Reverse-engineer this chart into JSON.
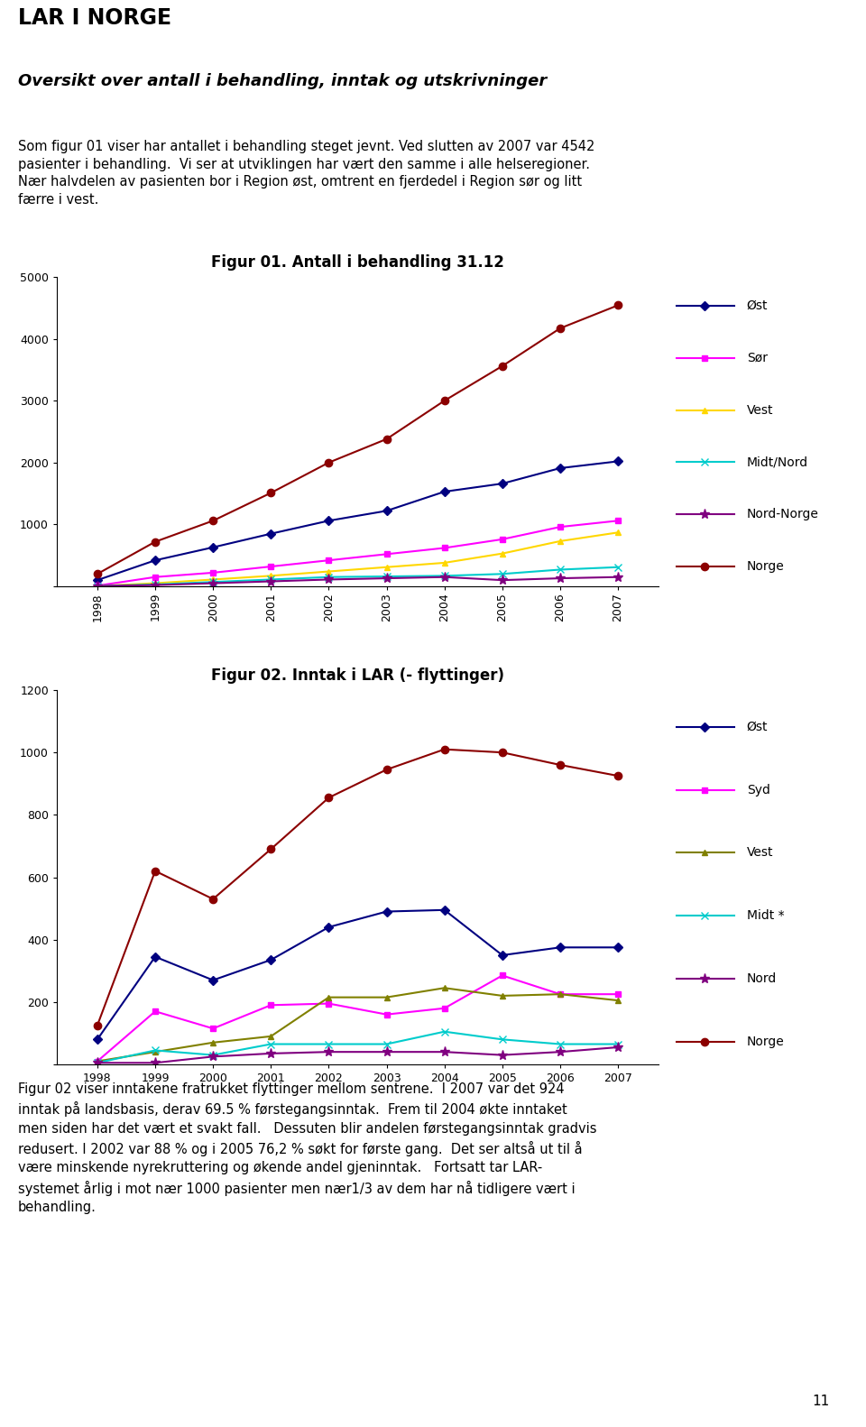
{
  "page_title": "LAR I NORGE",
  "subtitle": "Oversikt over antall i behandling, inntak og utskrivninger",
  "fig1_title": "Figur 01. Antall i behandling 31.12",
  "fig1_years": [
    1998,
    1999,
    2000,
    2001,
    2002,
    2003,
    2004,
    2005,
    2006,
    2007
  ],
  "fig1_ost": [
    100,
    420,
    630,
    850,
    1060,
    1220,
    1530,
    1660,
    1910,
    2020
  ],
  "fig1_sor": [
    10,
    150,
    220,
    320,
    420,
    520,
    620,
    760,
    960,
    1060
  ],
  "fig1_vest": [
    5,
    50,
    110,
    170,
    240,
    310,
    380,
    530,
    730,
    870
  ],
  "fig1_midtnord": [
    5,
    30,
    70,
    110,
    150,
    160,
    170,
    200,
    270,
    310
  ],
  "fig1_nordnorge": [
    5,
    20,
    50,
    80,
    110,
    130,
    150,
    100,
    130,
    150
  ],
  "fig1_norge": [
    200,
    720,
    1060,
    1510,
    2000,
    2380,
    3000,
    3560,
    4170,
    4542
  ],
  "fig1_ylim": [
    0,
    5000
  ],
  "fig1_yticks": [
    0,
    1000,
    2000,
    3000,
    4000,
    5000
  ],
  "fig2_title": "Figur 02. Inntak i LAR (- flyttinger)",
  "fig2_years": [
    1998,
    1999,
    2000,
    2001,
    2002,
    2003,
    2004,
    2005,
    2006,
    2007
  ],
  "fig2_ost": [
    80,
    345,
    270,
    335,
    440,
    490,
    495,
    350,
    375,
    375
  ],
  "fig2_syd": [
    10,
    170,
    115,
    190,
    195,
    160,
    180,
    285,
    225,
    225
  ],
  "fig2_vest": [
    10,
    40,
    70,
    90,
    215,
    215,
    245,
    220,
    225,
    205
  ],
  "fig2_midt": [
    5,
    45,
    30,
    65,
    65,
    65,
    105,
    80,
    65,
    65
  ],
  "fig2_nord": [
    5,
    5,
    25,
    35,
    40,
    40,
    40,
    30,
    40,
    55
  ],
  "fig2_norge": [
    125,
    620,
    530,
    690,
    855,
    945,
    1010,
    1000,
    960,
    925
  ],
  "fig2_ylim": [
    0,
    1200
  ],
  "fig2_yticks": [
    0,
    200,
    400,
    600,
    800,
    1000,
    1200
  ],
  "page_number": "11",
  "color_ost": "#000080",
  "color_sor": "#FF00FF",
  "color_syd": "#FF00FF",
  "color_vest_fig1": "#FFD700",
  "color_vest_fig2": "#808000",
  "color_midtnord": "#00CCCC",
  "color_midt": "#00CCCC",
  "color_nordnorge": "#800080",
  "color_nord": "#800080",
  "color_norge": "#8B0000",
  "body_text1_lines": [
    "Som figur 01 viser har antallet i behandling steget jevnt. Ved slutten av 2007 var 4542",
    "pasienter i behandling.  Vi ser at utviklingen har vært den samme i alle helseregioner.",
    "Nær halvdelen av pasienten bor i Region øst, omtrent en fjerdedel i Region sør og litt",
    "færre i vest."
  ],
  "body_text2_lines": [
    "Figur 02 viser inntakene fratrukket flyttinger mellom sentrene.  I 2007 var det 924",
    "inntak på landsbasis, derav 69.5 % førstegangsinntak.  Frem til 2004 økte inntaket",
    "men siden har det vært et svakt fall.   Dessuten blir andelen førstegangsinntak gradvis",
    "redusert. I 2002 var 88 % og i 2005 76,2 % søkt for første gang.  Det ser altså ut til å",
    "være minskende nyrekruttering og økende andel gjeninntak.   Fortsatt tar LAR-",
    "systemet årlig i mot nær 1000 pasienter men nær1/3 av dem har nå tidligere vært i",
    "behandling."
  ]
}
